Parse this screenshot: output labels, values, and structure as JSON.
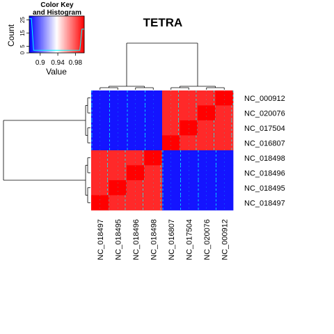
{
  "chart_data": {
    "type": "heatmap",
    "title": "TETRA",
    "row_labels": [
      "NC_000912",
      "NC_020076",
      "NC_017504",
      "NC_016807",
      "NC_018498",
      "NC_018496",
      "NC_018495",
      "NC_018497"
    ],
    "col_labels": [
      "NC_018497",
      "NC_018495",
      "NC_018496",
      "NC_018498",
      "NC_016807",
      "NC_017504",
      "NC_020076",
      "NC_000912"
    ],
    "values": [
      [
        0.88,
        0.88,
        0.88,
        0.88,
        0.99,
        0.99,
        0.99,
        1.0
      ],
      [
        0.88,
        0.88,
        0.88,
        0.88,
        0.99,
        0.99,
        1.0,
        0.99
      ],
      [
        0.88,
        0.88,
        0.88,
        0.88,
        0.99,
        1.0,
        0.99,
        0.99
      ],
      [
        0.88,
        0.88,
        0.88,
        0.88,
        1.0,
        0.99,
        0.99,
        0.99
      ],
      [
        0.99,
        0.99,
        0.99,
        1.0,
        0.88,
        0.88,
        0.88,
        0.88
      ],
      [
        0.99,
        0.99,
        1.0,
        0.99,
        0.88,
        0.88,
        0.88,
        0.88
      ],
      [
        0.99,
        1.0,
        0.99,
        0.99,
        0.88,
        0.88,
        0.88,
        0.88
      ],
      [
        1.0,
        0.99,
        0.99,
        0.99,
        0.88,
        0.88,
        0.88,
        0.88
      ]
    ],
    "colors": {
      "low": "#0000ff",
      "mid": "#ffffff",
      "high": "#ff0000",
      "trace": "#00ffff"
    },
    "color_key": {
      "title_line1": "Color Key",
      "title_line2": "and Histogram",
      "xlabel": "Value",
      "ylabel": "Count",
      "x_ticks": [
        "0.9",
        "0.94",
        "0.98"
      ],
      "x_tick_values": [
        0.9,
        0.94,
        0.98
      ],
      "y_ticks": [
        "0",
        "5",
        "15",
        "25"
      ],
      "y_tick_values": [
        0,
        5,
        15,
        25
      ],
      "value_range": [
        0.875,
        1.0
      ],
      "count_range": [
        0,
        28
      ]
    }
  }
}
